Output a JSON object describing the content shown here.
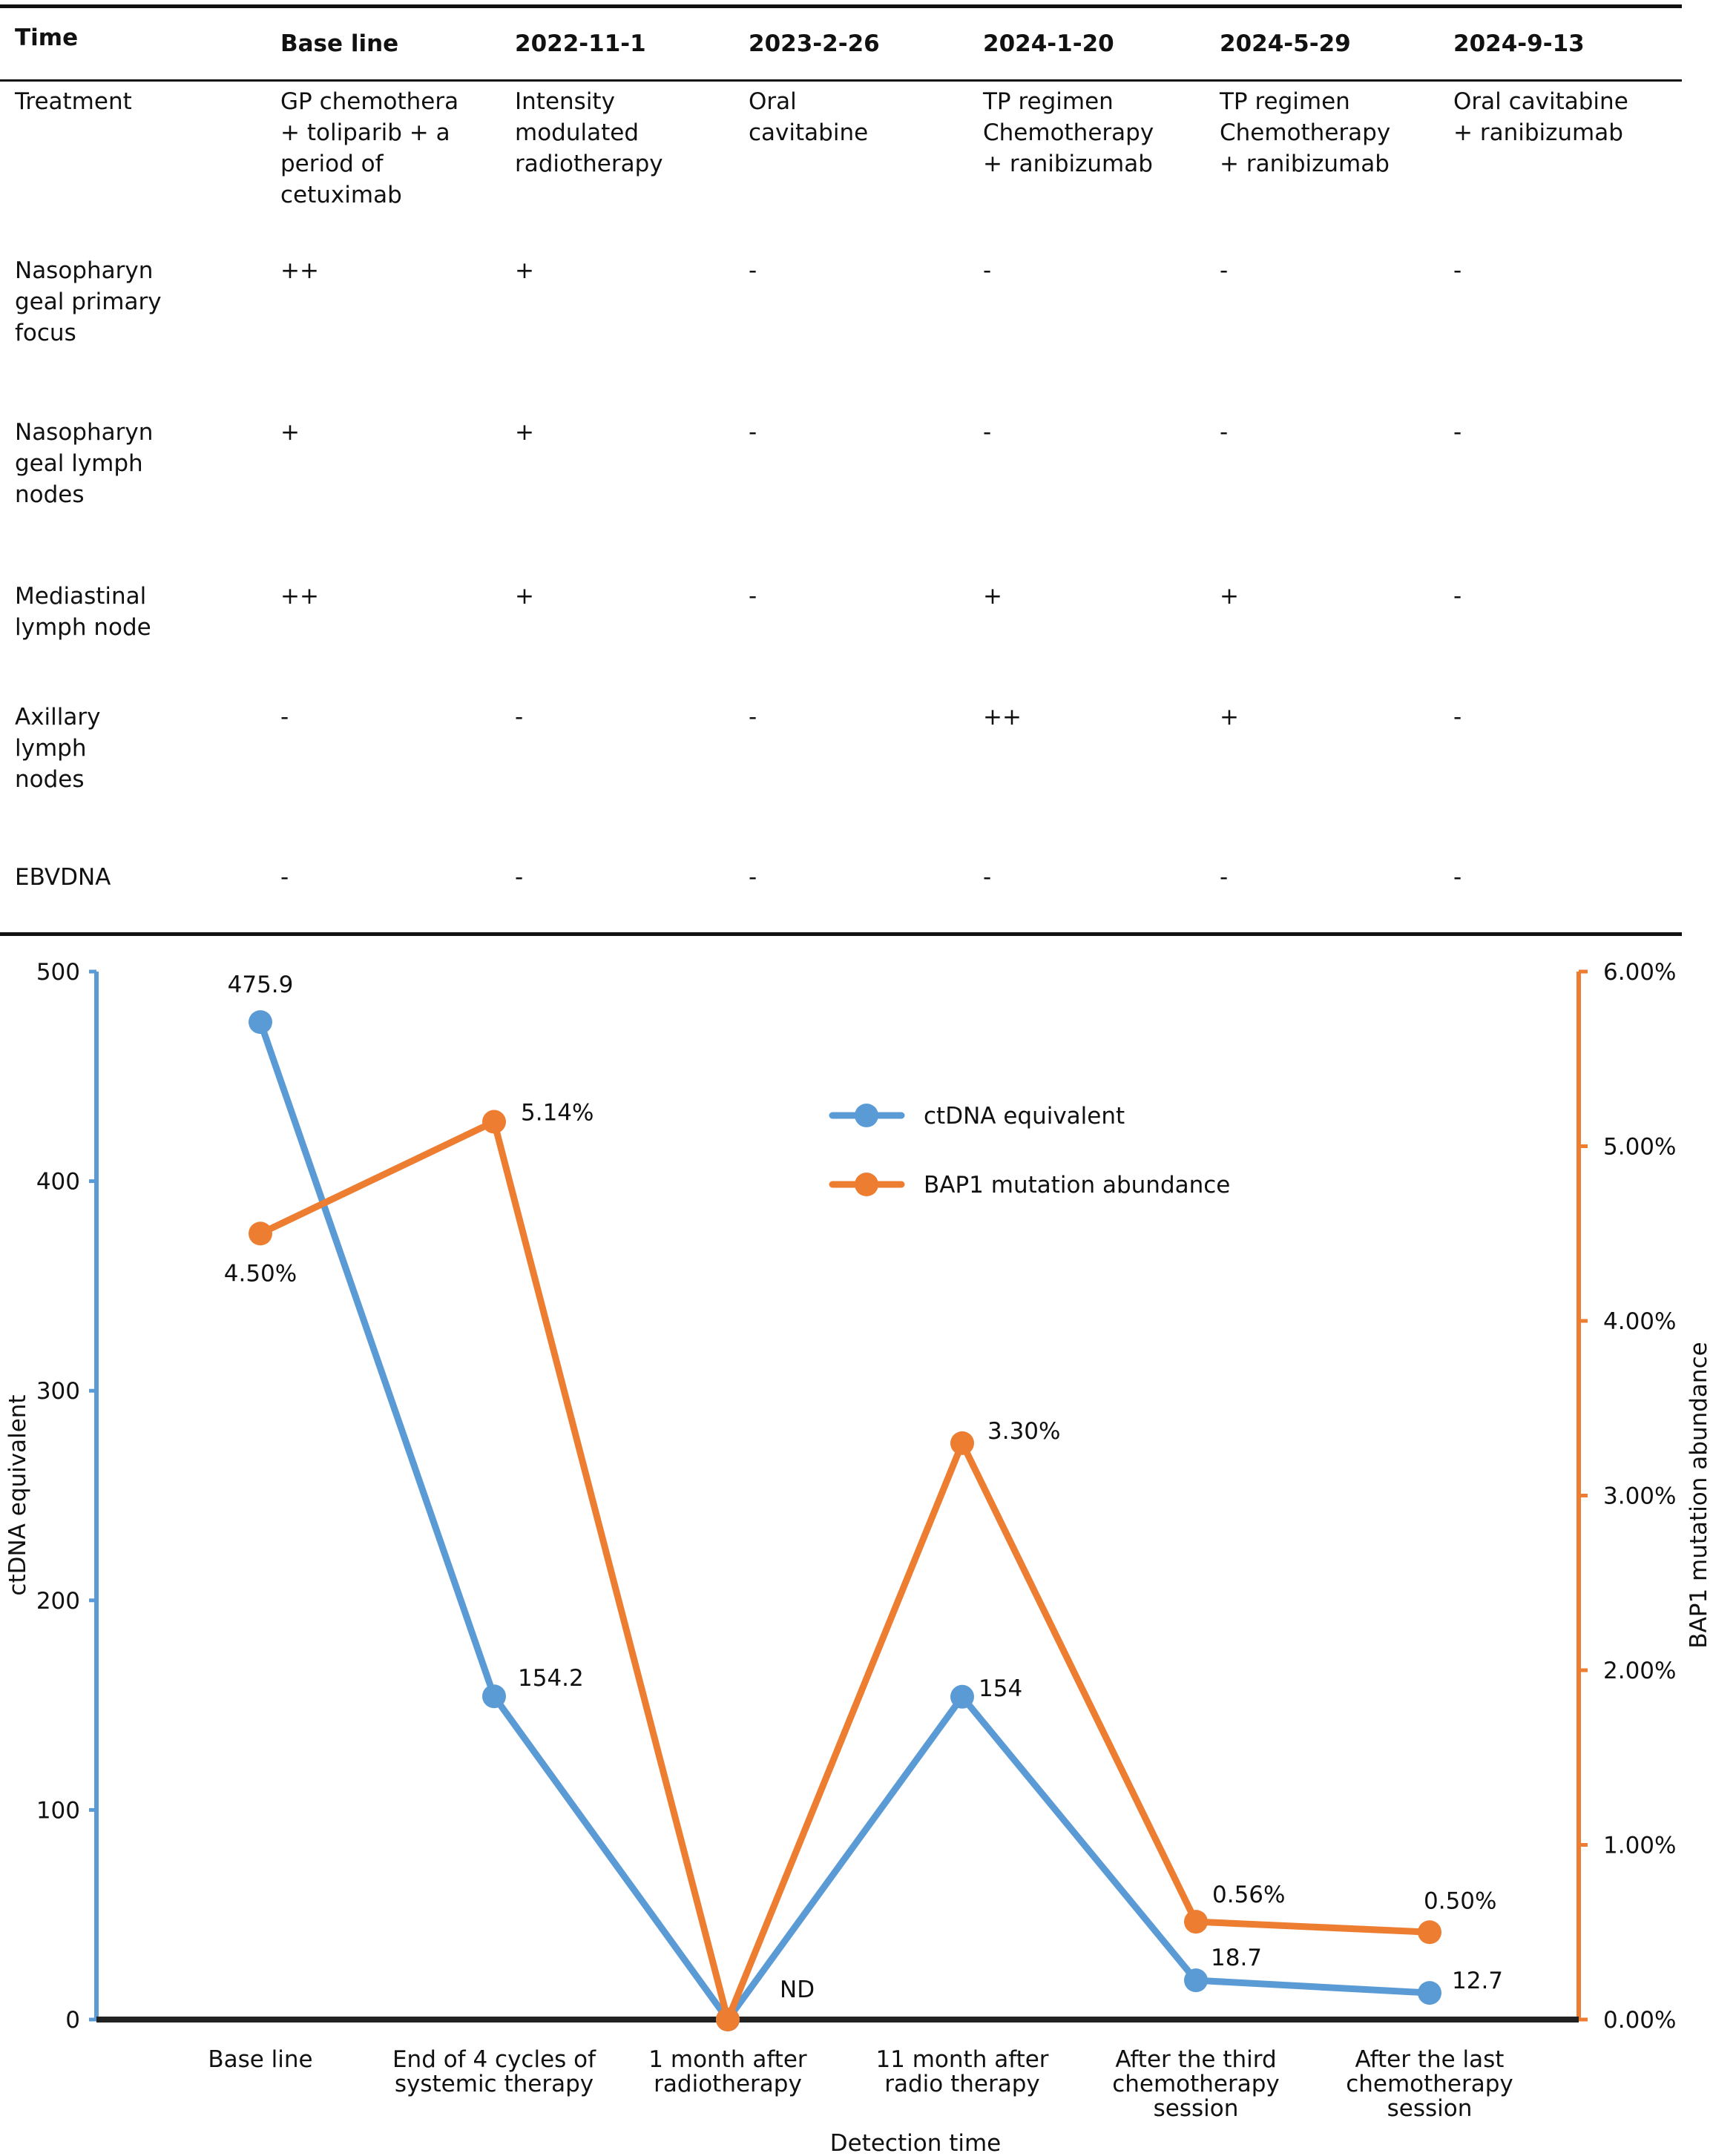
{
  "table": {
    "columns": [
      "Time",
      "Base line",
      "2022-11-1",
      "2023-2-26",
      "2024-1-20",
      "2024-5-29",
      "2024-9-13"
    ],
    "rows": [
      {
        "label": "Treatment",
        "cells": [
          "GP chemothera\n+ toliparib + a\nperiod of\ncetuximab",
          "Intensity\nmodulated\nradiotherapy",
          "Oral\ncavitabine",
          "TP regimen\nChemotherapy\n+ ranibizumab",
          "TP regimen\nChemotherapy\n+ ranibizumab",
          "Oral cavitabine\n+ ranibizumab"
        ]
      },
      {
        "label": "Nasopharyn\ngeal primary\nfocus",
        "cells": [
          "++",
          "+",
          "-",
          "-",
          "-",
          "-"
        ]
      },
      {
        "label": "Nasopharyn\ngeal lymph\nnodes",
        "cells": [
          "+",
          "+",
          "-",
          "-",
          "-",
          "-"
        ]
      },
      {
        "label": "Mediastinal\nlymph node",
        "cells": [
          "++",
          "+",
          "-",
          "+",
          "+",
          "-"
        ]
      },
      {
        "label": "Axillary\nlymph\nnodes",
        "cells": [
          "-",
          "-",
          "-",
          "++",
          "+",
          "-"
        ]
      },
      {
        "label": "EBVDNA",
        "cells": [
          "-",
          "-",
          "-",
          "-",
          "-",
          "-"
        ]
      }
    ]
  },
  "chart_data": {
    "type": "line",
    "xlabel": "Detection time",
    "ylabel": "ctDNA equivalent",
    "ylabel_right": "BAP1 mutation abundance",
    "categories": [
      [
        "Base line"
      ],
      [
        "End of 4 cycles of",
        "systemic therapy"
      ],
      [
        "1 month after",
        "radiotherapy"
      ],
      [
        "11 month after",
        "radio therapy"
      ],
      [
        "After the third",
        "chemotherapy",
        "session"
      ],
      [
        "After the last",
        "chemotherapy",
        "session"
      ]
    ],
    "ylim": [
      0,
      500
    ],
    "yticks": [
      "0",
      "100",
      "200",
      "300",
      "400",
      "500"
    ],
    "ylim_right": [
      0,
      6
    ],
    "yticks_right": [
      "0.00%",
      "1.00%",
      "2.00%",
      "3.00%",
      "4.00%",
      "5.00%",
      "6.00%"
    ],
    "legend_position": "top-center",
    "series": [
      {
        "name": "ctDNA equivalent",
        "axis": "left",
        "color": "#5b9bd5",
        "values": [
          475.9,
          154.2,
          0,
          154,
          18.7,
          12.7
        ],
        "labels": [
          "475.9",
          "154.2",
          "ND",
          "154",
          "18.7",
          "12.7"
        ]
      },
      {
        "name": "BAP1 mutation abundance",
        "axis": "right",
        "color": "#ed7d31",
        "values": [
          4.5,
          5.14,
          0,
          3.3,
          0.56,
          0.5
        ],
        "labels": [
          "4.50%",
          "5.14%",
          "",
          "3.30%",
          "0.56%",
          "0.50%"
        ]
      }
    ]
  }
}
